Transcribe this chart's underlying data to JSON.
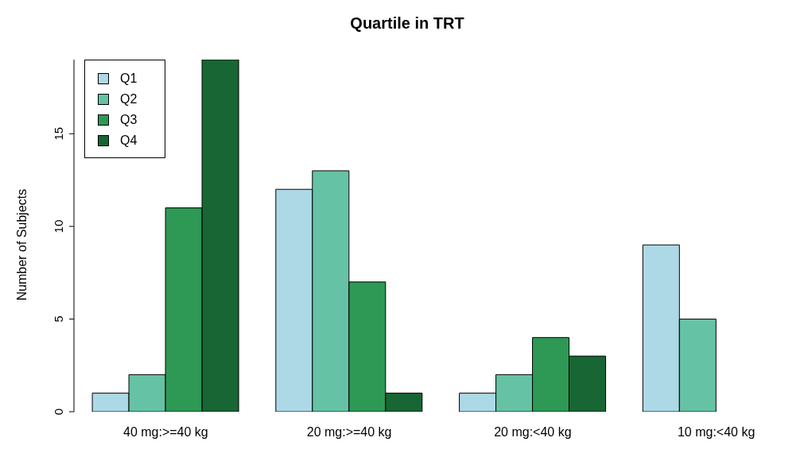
{
  "chart_data": {
    "type": "bar",
    "title": "Quartile in TRT",
    "ylabel": "Number of Subjects",
    "categories": [
      "40 mg:>=40 kg",
      "20 mg:>=40 kg",
      "20 mg:<40 kg",
      "10 mg:<40 kg"
    ],
    "series": [
      {
        "name": "Q1",
        "color": "#add8e6",
        "values": [
          1,
          12,
          1,
          9
        ]
      },
      {
        "name": "Q2",
        "color": "#66c2a4",
        "values": [
          2,
          13,
          2,
          5
        ]
      },
      {
        "name": "Q3",
        "color": "#2e9855",
        "values": [
          11,
          7,
          4,
          0
        ]
      },
      {
        "name": "Q4",
        "color": "#176634",
        "values": [
          19,
          1,
          3,
          0
        ]
      }
    ],
    "ylim": [
      0,
      19
    ],
    "yticks": [
      0,
      5,
      10,
      15
    ],
    "grid": false,
    "legend": "top left"
  }
}
